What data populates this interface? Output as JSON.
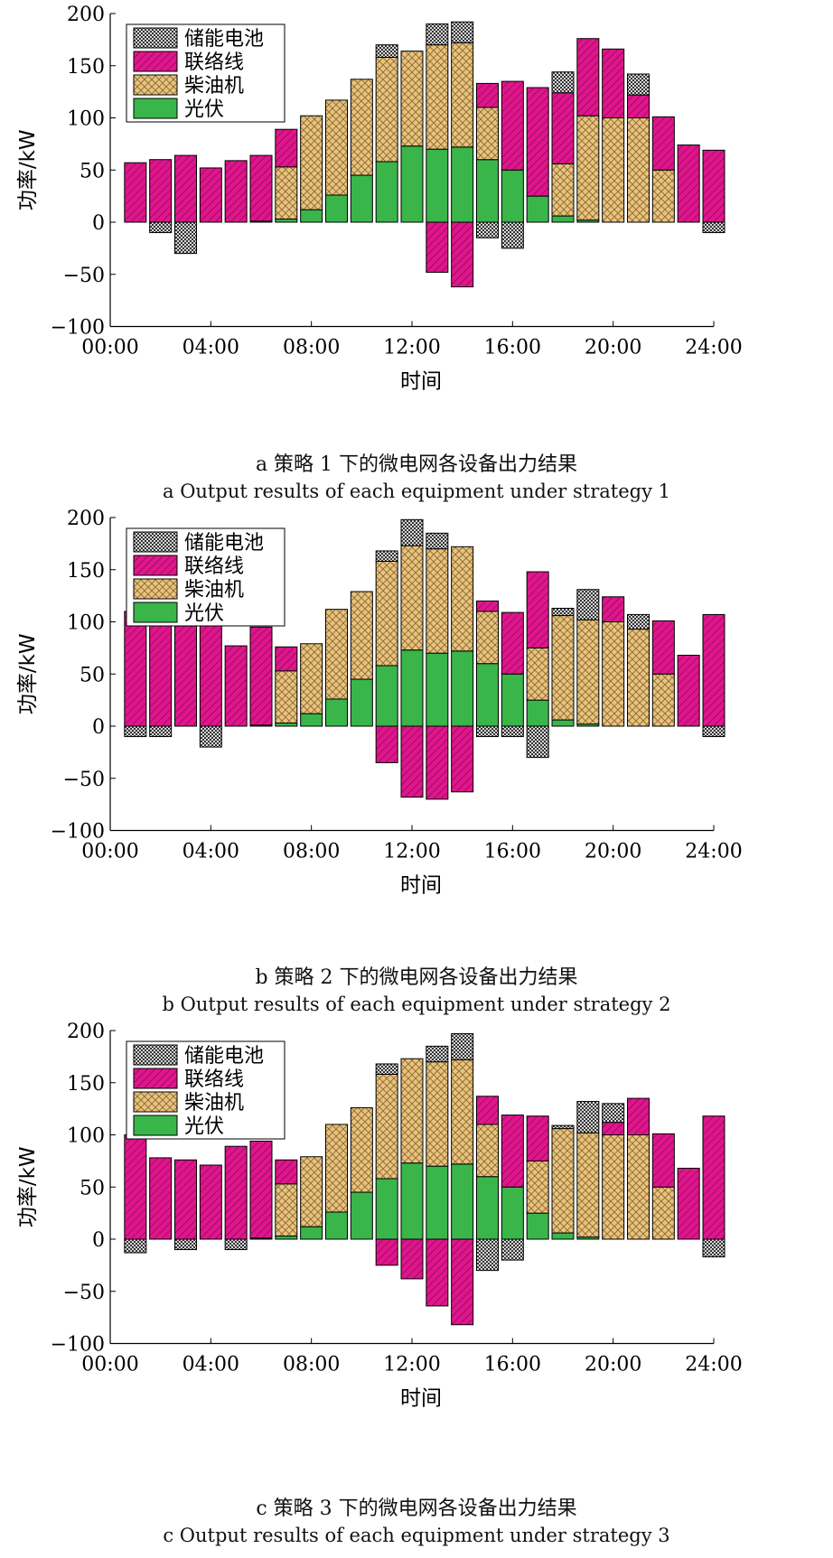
{
  "colors": {
    "storage": "#9a9a9a",
    "grid_tie": "#e0158c",
    "diesel": "#e8c27e",
    "pv": "#39b54a"
  },
  "legend": [
    "储能电池",
    "联络线",
    "柴油机",
    "光伏"
  ],
  "chart_data": [
    {
      "type": "bar",
      "stacked": true,
      "xlabel": "时间",
      "ylabel": "功率/kW",
      "ylim": [
        -100,
        200
      ],
      "yticks": [
        "200",
        "150",
        "100",
        "50",
        "0",
        "−50",
        "−100"
      ],
      "xticks": [
        "00:00",
        "04:00",
        "08:00",
        "12:00",
        "16:00",
        "20:00",
        "24:00"
      ],
      "xlim": [
        0,
        24
      ],
      "legend_position": "top-left",
      "caption_cn": "a  策略 1 下的微电网各设备出力结果",
      "caption_en": "a  Output results of each equipment under strategy 1",
      "hours": [
        1,
        2,
        3,
        4,
        5,
        6,
        7,
        8,
        9,
        10,
        11,
        12,
        13,
        14,
        15,
        16,
        17,
        18,
        19,
        20,
        21,
        22,
        23,
        24
      ],
      "series": [
        {
          "name": "光伏",
          "key": "pv",
          "values": [
            0,
            0,
            0,
            0,
            0,
            1,
            3,
            12,
            26,
            45,
            58,
            73,
            70,
            72,
            60,
            50,
            25,
            6,
            2,
            0,
            0,
            0,
            0,
            0
          ]
        },
        {
          "name": "柴油机",
          "key": "diesel",
          "values": [
            0,
            0,
            0,
            0,
            0,
            0,
            50,
            90,
            91,
            92,
            100,
            91,
            100,
            100,
            50,
            0,
            0,
            50,
            100,
            100,
            100,
            50,
            0,
            0
          ]
        },
        {
          "name": "联络线",
          "key": "grid_tie",
          "values": [
            57,
            60,
            64,
            52,
            59,
            63,
            36,
            0,
            0,
            0,
            0,
            0,
            -48,
            -62,
            23,
            85,
            104,
            68,
            74,
            66,
            22,
            51,
            74,
            69
          ]
        },
        {
          "name": "储能电池",
          "key": "storage",
          "values": [
            0,
            -10,
            -30,
            0,
            0,
            0,
            0,
            0,
            0,
            0,
            12,
            0,
            20,
            20,
            -15,
            -25,
            0,
            20,
            0,
            0,
            20,
            0,
            0,
            -10
          ]
        }
      ]
    },
    {
      "type": "bar",
      "stacked": true,
      "xlabel": "时间",
      "ylabel": "功率/kW",
      "ylim": [
        -100,
        200
      ],
      "yticks": [
        "200",
        "150",
        "100",
        "50",
        "0",
        "−50",
        "−100"
      ],
      "xticks": [
        "00:00",
        "04:00",
        "08:00",
        "12:00",
        "16:00",
        "20:00",
        "24:00"
      ],
      "xlim": [
        0,
        24
      ],
      "legend_position": "top-left",
      "caption_cn": "b  策略 2 下的微电网各设备出力结果",
      "caption_en": "b  Output results of each equipment under strategy 2",
      "hours": [
        1,
        2,
        3,
        4,
        5,
        6,
        7,
        8,
        9,
        10,
        11,
        12,
        13,
        14,
        15,
        16,
        17,
        18,
        19,
        20,
        21,
        22,
        23,
        24
      ],
      "series": [
        {
          "name": "光伏",
          "key": "pv",
          "values": [
            0,
            0,
            0,
            0,
            0,
            1,
            3,
            12,
            26,
            45,
            58,
            73,
            70,
            72,
            60,
            50,
            25,
            6,
            2,
            0,
            0,
            0,
            0,
            0
          ]
        },
        {
          "name": "柴油机",
          "key": "diesel",
          "values": [
            0,
            0,
            0,
            0,
            0,
            0,
            50,
            67,
            86,
            84,
            100,
            100,
            100,
            100,
            50,
            0,
            50,
            100,
            100,
            100,
            93,
            50,
            0,
            0
          ]
        },
        {
          "name": "联络线",
          "key": "grid_tie",
          "values": [
            110,
            107,
            96,
            104,
            77,
            94,
            23,
            0,
            0,
            0,
            -35,
            -68,
            -70,
            -63,
            10,
            59,
            73,
            0,
            0,
            24,
            0,
            51,
            68,
            107
          ]
        },
        {
          "name": "储能电池",
          "key": "storage",
          "values": [
            -10,
            -10,
            0,
            -20,
            0,
            0,
            0,
            0,
            0,
            0,
            10,
            25,
            15,
            0,
            -10,
            -10,
            -30,
            7,
            29,
            0,
            14,
            0,
            0,
            -10
          ]
        }
      ]
    },
    {
      "type": "bar",
      "stacked": true,
      "xlabel": "时间",
      "ylabel": "功率/kW",
      "ylim": [
        -100,
        200
      ],
      "yticks": [
        "200",
        "150",
        "100",
        "50",
        "0",
        "−50",
        "−100"
      ],
      "xticks": [
        "00:00",
        "04:00",
        "08:00",
        "12:00",
        "16:00",
        "20:00",
        "24:00"
      ],
      "xlim": [
        0,
        24
      ],
      "legend_position": "top-left",
      "caption_cn": "c  策略 3 下的微电网各设备出力结果",
      "caption_en": "c  Output results of each equipment under strategy 3",
      "hours": [
        1,
        2,
        3,
        4,
        5,
        6,
        7,
        8,
        9,
        10,
        11,
        12,
        13,
        14,
        15,
        16,
        17,
        18,
        19,
        20,
        21,
        22,
        23,
        24
      ],
      "series": [
        {
          "name": "光伏",
          "key": "pv",
          "values": [
            0,
            0,
            0,
            0,
            0,
            1,
            3,
            12,
            26,
            45,
            58,
            73,
            70,
            72,
            60,
            50,
            25,
            6,
            2,
            0,
            0,
            0,
            0,
            0
          ]
        },
        {
          "name": "柴油机",
          "key": "diesel",
          "values": [
            0,
            0,
            0,
            0,
            0,
            0,
            50,
            67,
            84,
            81,
            100,
            100,
            100,
            100,
            50,
            0,
            50,
            100,
            100,
            100,
            100,
            50,
            0,
            0
          ]
        },
        {
          "name": "联络线",
          "key": "grid_tie",
          "values": [
            100,
            78,
            76,
            71,
            89,
            93,
            23,
            0,
            0,
            0,
            -25,
            -38,
            -64,
            -82,
            27,
            69,
            43,
            0,
            0,
            12,
            35,
            51,
            68,
            118
          ]
        },
        {
          "name": "储能电池",
          "key": "storage",
          "values": [
            -13,
            0,
            -10,
            0,
            -10,
            0,
            0,
            0,
            0,
            0,
            10,
            0,
            15,
            25,
            -30,
            -20,
            0,
            3,
            30,
            18,
            0,
            0,
            0,
            -17
          ]
        }
      ]
    }
  ]
}
